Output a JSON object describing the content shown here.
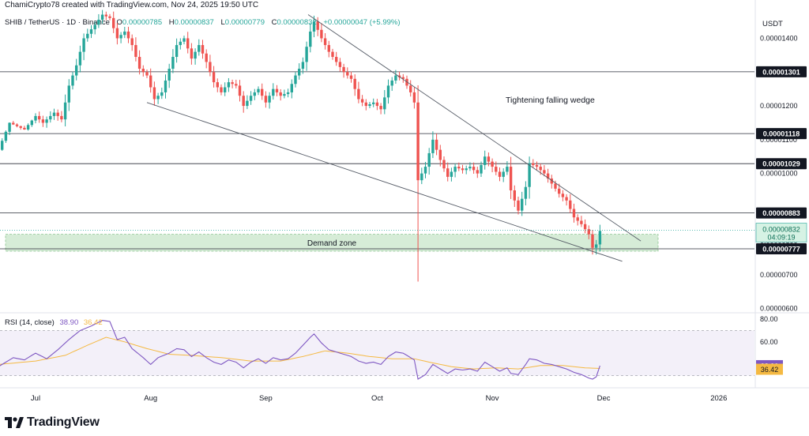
{
  "header": {
    "text": "ChamiCrypto78 created with TradingView.com, Nov 24, 2025 19:50 UTC"
  },
  "legend": {
    "symbol": "SHIB / TetherUS · 1D · Binance",
    "open_label": "O",
    "open": "0.00000785",
    "high_label": "H",
    "high": "0.00000837",
    "low_label": "L",
    "low": "0.00000779",
    "close_label": "C",
    "close": "0.00000832",
    "change": "+0.00000047 (+5.99%)"
  },
  "rsi_legend": {
    "label": "RSI (14, close)",
    "rsi": "38.90",
    "ma": "36.42"
  },
  "brand": {
    "name": "TradingView"
  },
  "colors": {
    "up": "#26a69a",
    "down": "#ef5350",
    "rsi": "#7e57c2",
    "rsi_ma": "#f5b942",
    "zone": "#c8e6c9"
  },
  "chart_data": {
    "type": "candlestick",
    "y_axis_title": "USDT",
    "ylim": [
      5.9e-06,
      1.49e-05
    ],
    "y_ticks": [
      "0.00001400",
      "0.00001200",
      "0.00001100",
      "0.00001000",
      "0.00000800",
      "0.00000700",
      "0.00000600"
    ],
    "y_tick_values": [
      1.4e-05,
      1.2e-05,
      1.1e-05,
      1e-05,
      8e-06,
      7e-06,
      6e-06
    ],
    "x_ticks": [
      "Jul",
      "Aug",
      "Sep",
      "Oct",
      "Nov",
      "Dec",
      "2026"
    ],
    "x_tick_days": [
      0,
      31,
      62,
      92,
      123,
      153,
      184
    ],
    "levels": [
      {
        "label": "0.00001301",
        "value": 1.301e-05
      },
      {
        "label": "0.00001118",
        "value": 1.118e-05
      },
      {
        "label": "0.00001029",
        "value": 1.029e-05
      },
      {
        "label": "0.00000883",
        "value": 8.83e-06
      },
      {
        "label": "0.00000777",
        "value": 7.77e-06
      }
    ],
    "price_tag": {
      "price": "0.00000832",
      "countdown": "04:09:19",
      "value": 8.32e-06
    },
    "demand_zone": {
      "label": "Demand zone",
      "low": 7.7e-06,
      "high": 8.2e-06
    },
    "annotation": "Tightening falling wedge",
    "wedge_upper": [
      [
        -12,
        1.47e-05
      ],
      [
        163,
        8e-06
      ]
    ],
    "wedge_lower": [
      [
        30,
        1.21e-05
      ],
      [
        158,
        7.4e-06
      ]
    ],
    "rsi": {
      "ylim": [
        20,
        85
      ],
      "y_ticks": [
        "80.00",
        "60.00"
      ],
      "y_tick_values": [
        80,
        60
      ],
      "band": [
        30,
        70
      ],
      "last_rsi": 38.9,
      "last_ma": 36.42
    },
    "pivots": [
      [
        -10,
        1.07e-05
      ],
      [
        -7,
        1.15e-05
      ],
      [
        -3,
        1.13e-05
      ],
      [
        0,
        1.17e-05
      ],
      [
        2,
        1.15e-05
      ],
      [
        5,
        1.18e-05
      ],
      [
        7,
        1.16e-05
      ],
      [
        9,
        1.26e-05
      ],
      [
        11,
        1.32e-05
      ],
      [
        13,
        1.4e-05
      ],
      [
        16,
        1.44e-05
      ],
      [
        18,
        1.47e-05
      ],
      [
        20,
        1.46e-05
      ],
      [
        22,
        1.4e-05
      ],
      [
        24,
        1.42e-05
      ],
      [
        26,
        1.38e-05
      ],
      [
        28,
        1.31e-05
      ],
      [
        30,
        1.29e-05
      ],
      [
        32,
        1.22e-05
      ],
      [
        34,
        1.24e-05
      ],
      [
        36,
        1.31e-05
      ],
      [
        38,
        1.38e-05
      ],
      [
        40,
        1.4e-05
      ],
      [
        42,
        1.34e-05
      ],
      [
        44,
        1.38e-05
      ],
      [
        46,
        1.33e-05
      ],
      [
        48,
        1.27e-05
      ],
      [
        50,
        1.24e-05
      ],
      [
        52,
        1.27e-05
      ],
      [
        54,
        1.26e-05
      ],
      [
        56,
        1.2e-05
      ],
      [
        58,
        1.23e-05
      ],
      [
        60,
        1.25e-05
      ],
      [
        62,
        1.21e-05
      ],
      [
        64,
        1.25e-05
      ],
      [
        66,
        1.23e-05
      ],
      [
        68,
        1.24e-05
      ],
      [
        70,
        1.29e-05
      ],
      [
        72,
        1.33e-05
      ],
      [
        74,
        1.42e-05
      ],
      [
        75,
        1.45e-05
      ],
      [
        77,
        1.4e-05
      ],
      [
        79,
        1.36e-05
      ],
      [
        81,
        1.33e-05
      ],
      [
        83,
        1.3e-05
      ],
      [
        85,
        1.28e-05
      ],
      [
        87,
        1.22e-05
      ],
      [
        89,
        1.2e-05
      ],
      [
        91,
        1.21e-05
      ],
      [
        93,
        1.19e-05
      ],
      [
        95,
        1.26e-05
      ],
      [
        97,
        1.29e-05
      ],
      [
        99,
        1.28e-05
      ],
      [
        101,
        1.24e-05
      ],
      [
        102,
        1.21e-05
      ],
      [
        103,
        9.8e-06
      ],
      [
        105,
        1.02e-05
      ],
      [
        107,
        1.1e-05
      ],
      [
        109,
        1.04e-05
      ],
      [
        111,
        9.9e-06
      ],
      [
        113,
        1.02e-05
      ],
      [
        115,
        1.01e-05
      ],
      [
        117,
        1.02e-05
      ],
      [
        119,
        1e-05
      ],
      [
        121,
        1.05e-05
      ],
      [
        123,
        1.02e-05
      ],
      [
        125,
        9.9e-06
      ],
      [
        127,
        1.02e-05
      ],
      [
        128,
        9.5e-06
      ],
      [
        130,
        8.9e-06
      ],
      [
        132,
        9.6e-06
      ],
      [
        133,
        1.03e-05
      ],
      [
        135,
        1.02e-05
      ],
      [
        137,
        1e-05
      ],
      [
        139,
        9.7e-06
      ],
      [
        141,
        9.4e-06
      ],
      [
        143,
        9.2e-06
      ],
      [
        145,
        8.7e-06
      ],
      [
        147,
        8.5e-06
      ],
      [
        149,
        8.2e-06
      ],
      [
        150,
        7.8e-06
      ],
      [
        151,
        7.9e-06
      ],
      [
        152,
        8.3e-06
      ]
    ],
    "spikes": [
      {
        "day": 103,
        "low": 6.8e-06
      },
      {
        "day": 150,
        "low": 7.6e-06
      },
      {
        "day": 151,
        "low": 7.6e-06
      }
    ],
    "rsi_pivots": [
      [
        -10,
        38
      ],
      [
        -6,
        46
      ],
      [
        -3,
        44
      ],
      [
        0,
        50
      ],
      [
        3,
        45
      ],
      [
        6,
        53
      ],
      [
        9,
        62
      ],
      [
        12,
        70
      ],
      [
        15,
        74
      ],
      [
        18,
        79
      ],
      [
        20,
        78
      ],
      [
        22,
        62
      ],
      [
        24,
        64
      ],
      [
        26,
        54
      ],
      [
        29,
        46
      ],
      [
        31,
        40
      ],
      [
        33,
        46
      ],
      [
        36,
        50
      ],
      [
        38,
        54
      ],
      [
        40,
        53
      ],
      [
        42,
        47
      ],
      [
        44,
        51
      ],
      [
        46,
        46
      ],
      [
        48,
        42
      ],
      [
        50,
        40
      ],
      [
        52,
        44
      ],
      [
        54,
        42
      ],
      [
        56,
        37
      ],
      [
        58,
        42
      ],
      [
        60,
        45
      ],
      [
        62,
        41
      ],
      [
        64,
        46
      ],
      [
        66,
        44
      ],
      [
        68,
        45
      ],
      [
        70,
        50
      ],
      [
        72,
        57
      ],
      [
        74,
        64
      ],
      [
        75,
        67
      ],
      [
        77,
        59
      ],
      [
        79,
        53
      ],
      [
        81,
        51
      ],
      [
        83,
        49
      ],
      [
        85,
        47
      ],
      [
        87,
        43
      ],
      [
        89,
        41
      ],
      [
        91,
        42
      ],
      [
        93,
        40
      ],
      [
        95,
        47
      ],
      [
        97,
        51
      ],
      [
        99,
        50
      ],
      [
        101,
        46
      ],
      [
        102,
        44
      ],
      [
        103,
        27
      ],
      [
        105,
        31
      ],
      [
        107,
        40
      ],
      [
        109,
        36
      ],
      [
        111,
        32
      ],
      [
        113,
        36
      ],
      [
        115,
        35
      ],
      [
        117,
        36
      ],
      [
        119,
        34
      ],
      [
        121,
        42
      ],
      [
        123,
        38
      ],
      [
        125,
        34
      ],
      [
        127,
        37
      ],
      [
        128,
        32
      ],
      [
        130,
        31
      ],
      [
        132,
        40
      ],
      [
        133,
        45
      ],
      [
        135,
        44
      ],
      [
        137,
        41
      ],
      [
        139,
        40
      ],
      [
        141,
        38
      ],
      [
        143,
        36
      ],
      [
        145,
        33
      ],
      [
        147,
        31
      ],
      [
        149,
        28
      ],
      [
        150,
        27
      ],
      [
        151,
        29
      ],
      [
        152,
        38.9
      ]
    ],
    "rsi_ma_pivots": [
      [
        -10,
        40
      ],
      [
        0,
        43
      ],
      [
        8,
        48
      ],
      [
        14,
        57
      ],
      [
        19,
        64
      ],
      [
        24,
        60
      ],
      [
        30,
        54
      ],
      [
        36,
        49
      ],
      [
        42,
        48
      ],
      [
        50,
        46
      ],
      [
        58,
        43
      ],
      [
        66,
        43
      ],
      [
        72,
        47
      ],
      [
        78,
        52
      ],
      [
        84,
        50
      ],
      [
        90,
        47
      ],
      [
        96,
        45
      ],
      [
        102,
        45
      ],
      [
        106,
        42
      ],
      [
        112,
        38
      ],
      [
        118,
        36
      ],
      [
        124,
        37
      ],
      [
        130,
        36
      ],
      [
        136,
        39
      ],
      [
        142,
        39
      ],
      [
        148,
        37
      ],
      [
        152,
        36.42
      ]
    ]
  }
}
